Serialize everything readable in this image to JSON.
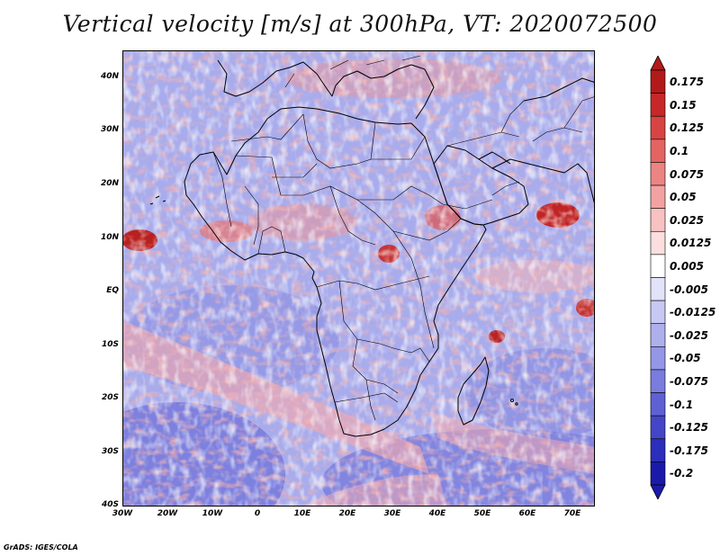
{
  "title": "Vertical velocity [m/s] at 300hPa, VT: 2020072500",
  "footer": "GrADS: IGES/COLA",
  "axes": {
    "lat_labels": [
      "40N",
      "30N",
      "20N",
      "10N",
      "EQ",
      "10S",
      "20S",
      "30S",
      "40S"
    ],
    "lon_labels": [
      "30W",
      "20W",
      "10W",
      "0",
      "10E",
      "20E",
      "30E",
      "40E",
      "50E",
      "60E",
      "70E"
    ]
  },
  "map_extent": {
    "lon_min": -30,
    "lon_max": 75,
    "lat_min": -40,
    "lat_max": 45
  },
  "colorbar": {
    "labels": [
      "0.175",
      "0.15",
      "0.125",
      "0.1",
      "0.075",
      "0.05",
      "0.025",
      "0.0125",
      "0.005",
      "-0.005",
      "-0.0125",
      "-0.025",
      "-0.05",
      "-0.075",
      "-0.1",
      "-0.125",
      "-0.175",
      "-0.2"
    ],
    "colors": [
      "#b21a1a",
      "#c62828",
      "#d84444",
      "#e46464",
      "#ec8484",
      "#f2a2a2",
      "#f8c2c2",
      "#fcdede",
      "#ffffff",
      "#e2e2fa",
      "#c8c8f4",
      "#aeb0ee",
      "#9496e6",
      "#7a7cde",
      "#5e60d4",
      "#4446c8",
      "#2c2ebc",
      "#1a1aaa"
    ]
  }
}
